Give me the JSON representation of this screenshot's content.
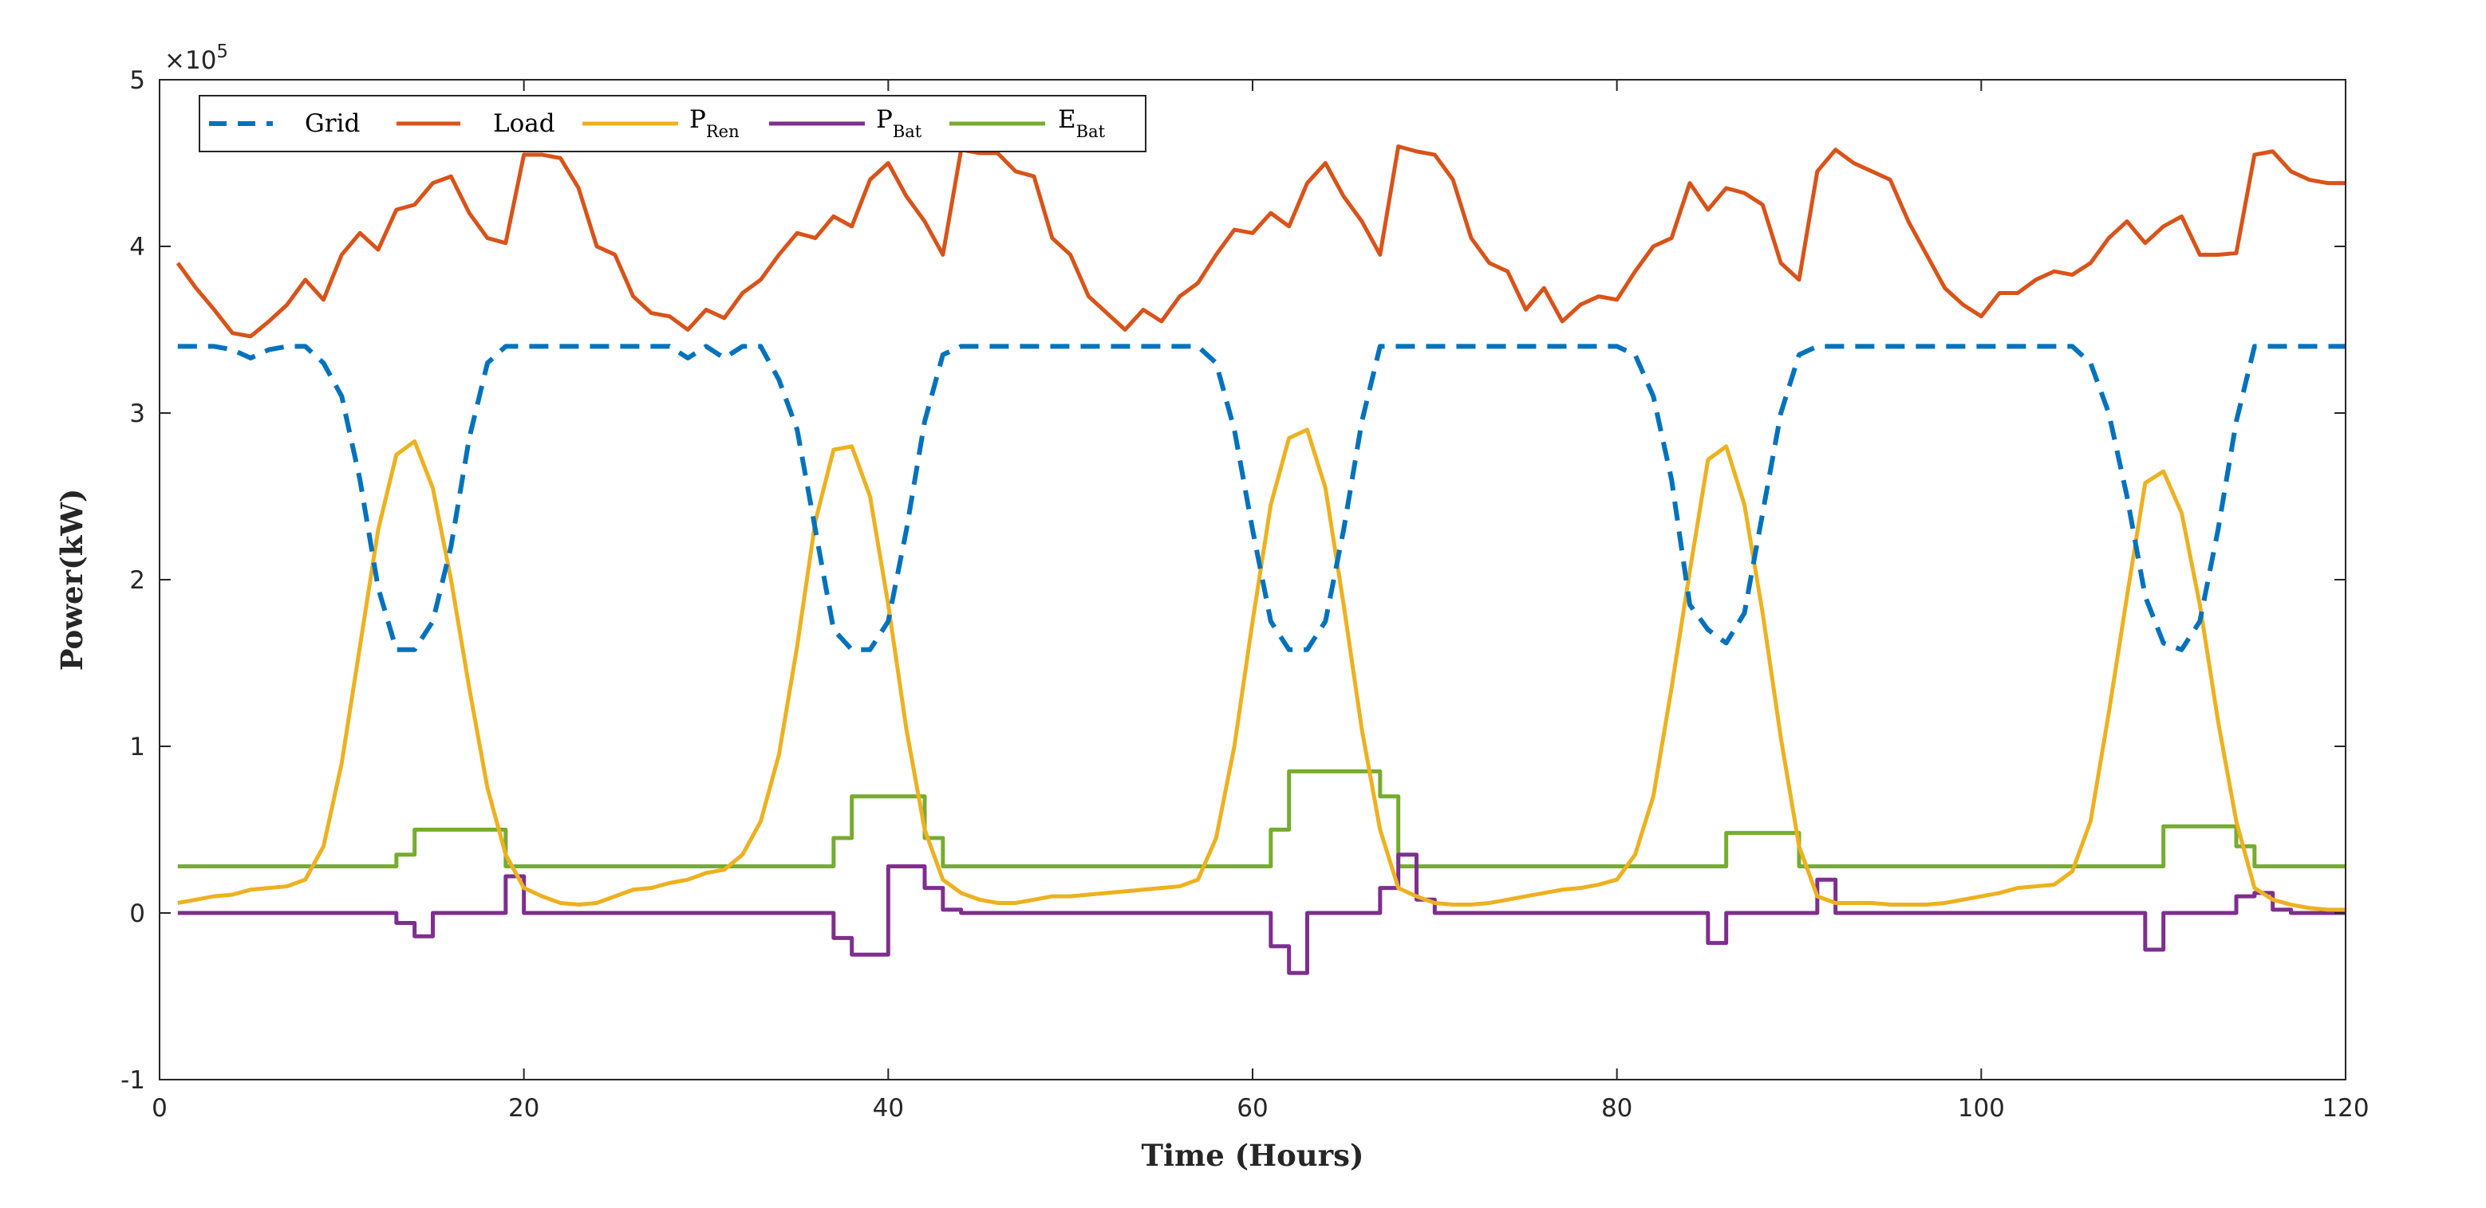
{
  "chart_data": {
    "type": "line",
    "title": "",
    "xlabel": "Time (Hours)",
    "ylabel": "Power(kW)",
    "xlim": [
      0,
      120
    ],
    "ylim": [
      -1,
      5
    ],
    "y_multiplier": "×10",
    "y_multiplier_exp": "5",
    "xticks": [
      0,
      20,
      40,
      60,
      80,
      100,
      120
    ],
    "yticks": [
      -1,
      0,
      1,
      2,
      3,
      4,
      5
    ],
    "grid": false,
    "legend_position": "top-left",
    "series": [
      {
        "name": "Grid",
        "label_main": "Grid",
        "label_sub": "",
        "color": "#0072BD",
        "style": "dashed",
        "x": [
          1,
          2,
          3,
          4,
          5,
          6,
          7,
          8,
          9,
          10,
          11,
          12,
          13,
          14,
          15,
          16,
          17,
          18,
          19,
          20,
          21,
          22,
          23,
          24,
          25,
          26,
          27,
          28,
          29,
          30,
          31,
          32,
          33,
          34,
          35,
          36,
          37,
          38,
          39,
          40,
          41,
          42,
          43,
          44,
          45,
          46,
          47,
          48,
          49,
          50,
          51,
          52,
          53,
          54,
          55,
          56,
          57,
          58,
          59,
          60,
          61,
          62,
          63,
          64,
          65,
          66,
          67,
          68,
          69,
          70,
          71,
          72,
          73,
          74,
          75,
          76,
          77,
          78,
          79,
          80,
          81,
          82,
          83,
          84,
          85,
          86,
          87,
          88,
          89,
          90,
          91,
          92,
          93,
          94,
          95,
          96,
          97,
          98,
          99,
          100,
          101,
          102,
          103,
          104,
          105,
          106,
          107,
          108,
          109,
          110,
          111,
          112,
          113,
          114,
          115,
          116,
          117,
          118,
          119,
          120
        ],
        "y": [
          3.4,
          3.4,
          3.4,
          3.38,
          3.33,
          3.38,
          3.4,
          3.4,
          3.3,
          3.1,
          2.6,
          1.95,
          1.58,
          1.58,
          1.75,
          2.2,
          2.85,
          3.3,
          3.4,
          3.4,
          3.4,
          3.4,
          3.4,
          3.4,
          3.4,
          3.4,
          3.4,
          3.4,
          3.33,
          3.4,
          3.33,
          3.4,
          3.4,
          3.2,
          2.9,
          2.3,
          1.7,
          1.58,
          1.58,
          1.75,
          2.3,
          2.95,
          3.35,
          3.4,
          3.4,
          3.4,
          3.4,
          3.4,
          3.4,
          3.4,
          3.4,
          3.4,
          3.4,
          3.4,
          3.4,
          3.4,
          3.4,
          3.3,
          2.9,
          2.3,
          1.75,
          1.58,
          1.58,
          1.75,
          2.3,
          2.95,
          3.4,
          3.4,
          3.4,
          3.4,
          3.4,
          3.4,
          3.4,
          3.4,
          3.4,
          3.4,
          3.4,
          3.4,
          3.4,
          3.4,
          3.35,
          3.1,
          2.6,
          1.85,
          1.7,
          1.62,
          1.8,
          2.4,
          3.0,
          3.35,
          3.4,
          3.4,
          3.4,
          3.4,
          3.4,
          3.4,
          3.4,
          3.4,
          3.4,
          3.4,
          3.4,
          3.4,
          3.4,
          3.4,
          3.4,
          3.3,
          3.0,
          2.5,
          1.9,
          1.62,
          1.58,
          1.75,
          2.3,
          2.95,
          3.4,
          3.4,
          3.4,
          3.4,
          3.4,
          3.4
        ]
      },
      {
        "name": "Load",
        "label_main": "Load",
        "label_sub": "",
        "color": "#D95319",
        "style": "solid",
        "x": [
          1,
          2,
          3,
          4,
          5,
          6,
          7,
          8,
          9,
          10,
          11,
          12,
          13,
          14,
          15,
          16,
          17,
          18,
          19,
          20,
          21,
          22,
          23,
          24,
          25,
          26,
          27,
          28,
          29,
          30,
          31,
          32,
          33,
          34,
          35,
          36,
          37,
          38,
          39,
          40,
          41,
          42,
          43,
          44,
          45,
          46,
          47,
          48,
          49,
          50,
          51,
          52,
          53,
          54,
          55,
          56,
          57,
          58,
          59,
          60,
          61,
          62,
          63,
          64,
          65,
          66,
          67,
          68,
          69,
          70,
          71,
          72,
          73,
          74,
          75,
          76,
          77,
          78,
          79,
          80,
          81,
          82,
          83,
          84,
          85,
          86,
          87,
          88,
          89,
          90,
          91,
          92,
          93,
          94,
          95,
          96,
          97,
          98,
          99,
          100,
          101,
          102,
          103,
          104,
          105,
          106,
          107,
          108,
          109,
          110,
          111,
          112,
          113,
          114,
          115,
          116,
          117,
          118,
          119,
          120
        ],
        "y": [
          3.9,
          3.75,
          3.62,
          3.48,
          3.46,
          3.55,
          3.65,
          3.8,
          3.68,
          3.95,
          4.08,
          3.98,
          4.22,
          4.25,
          4.38,
          4.42,
          4.2,
          4.05,
          4.02,
          4.55,
          4.55,
          4.53,
          4.35,
          4.0,
          3.95,
          3.7,
          3.6,
          3.58,
          3.5,
          3.62,
          3.57,
          3.72,
          3.8,
          3.95,
          4.08,
          4.05,
          4.18,
          4.12,
          4.4,
          4.5,
          4.3,
          4.15,
          3.95,
          4.58,
          4.56,
          4.56,
          4.45,
          4.42,
          4.05,
          3.95,
          3.7,
          3.6,
          3.5,
          3.62,
          3.55,
          3.7,
          3.78,
          3.95,
          4.1,
          4.08,
          4.2,
          4.12,
          4.38,
          4.5,
          4.3,
          4.15,
          3.95,
          4.6,
          4.57,
          4.55,
          4.4,
          4.05,
          3.9,
          3.85,
          3.62,
          3.75,
          3.55,
          3.65,
          3.7,
          3.68,
          3.85,
          4.0,
          4.05,
          4.38,
          4.22,
          4.35,
          4.32,
          4.25,
          3.9,
          3.8,
          4.45,
          4.58,
          4.5,
          4.45,
          4.4,
          4.15,
          3.95,
          3.75,
          3.65,
          3.58,
          3.72,
          3.72,
          3.8,
          3.85,
          3.83,
          3.9,
          4.05,
          4.15,
          4.02,
          4.12,
          4.18,
          3.95,
          3.95,
          3.96,
          4.55,
          4.57,
          4.45,
          4.4,
          4.38,
          4.38
        ]
      },
      {
        "name": "P_Ren",
        "label_main": "P",
        "label_sub": "Ren",
        "color": "#EDB120",
        "style": "solid",
        "x": [
          1,
          2,
          3,
          4,
          5,
          6,
          7,
          8,
          9,
          10,
          11,
          12,
          13,
          14,
          15,
          16,
          17,
          18,
          19,
          20,
          21,
          22,
          23,
          24,
          25,
          26,
          27,
          28,
          29,
          30,
          31,
          32,
          33,
          34,
          35,
          36,
          37,
          38,
          39,
          40,
          41,
          42,
          43,
          44,
          45,
          46,
          47,
          48,
          49,
          50,
          51,
          52,
          53,
          54,
          55,
          56,
          57,
          58,
          59,
          60,
          61,
          62,
          63,
          64,
          65,
          66,
          67,
          68,
          69,
          70,
          71,
          72,
          73,
          74,
          75,
          76,
          77,
          78,
          79,
          80,
          81,
          82,
          83,
          84,
          85,
          86,
          87,
          88,
          89,
          90,
          91,
          92,
          93,
          94,
          95,
          96,
          97,
          98,
          99,
          100,
          101,
          102,
          103,
          104,
          105,
          106,
          107,
          108,
          109,
          110,
          111,
          112,
          113,
          114,
          115,
          116,
          117,
          118,
          119,
          120
        ],
        "y": [
          0.06,
          0.08,
          0.1,
          0.11,
          0.14,
          0.15,
          0.16,
          0.2,
          0.4,
          0.9,
          1.6,
          2.3,
          2.75,
          2.83,
          2.55,
          2.0,
          1.35,
          0.75,
          0.35,
          0.15,
          0.1,
          0.06,
          0.05,
          0.06,
          0.1,
          0.14,
          0.15,
          0.18,
          0.2,
          0.24,
          0.26,
          0.35,
          0.55,
          0.95,
          1.6,
          2.35,
          2.78,
          2.8,
          2.5,
          1.85,
          1.1,
          0.5,
          0.2,
          0.12,
          0.08,
          0.06,
          0.06,
          0.08,
          0.1,
          0.1,
          0.11,
          0.12,
          0.13,
          0.14,
          0.15,
          0.16,
          0.2,
          0.45,
          1.0,
          1.75,
          2.45,
          2.85,
          2.9,
          2.55,
          1.85,
          1.1,
          0.5,
          0.15,
          0.1,
          0.06,
          0.05,
          0.05,
          0.06,
          0.08,
          0.1,
          0.12,
          0.14,
          0.15,
          0.17,
          0.2,
          0.35,
          0.7,
          1.35,
          2.05,
          2.72,
          2.8,
          2.45,
          1.8,
          1.05,
          0.4,
          0.1,
          0.06,
          0.06,
          0.06,
          0.05,
          0.05,
          0.05,
          0.06,
          0.08,
          0.1,
          0.12,
          0.15,
          0.16,
          0.17,
          0.25,
          0.55,
          1.2,
          1.9,
          2.58,
          2.65,
          2.4,
          1.85,
          1.15,
          0.55,
          0.15,
          0.08,
          0.05,
          0.03,
          0.02,
          0.02
        ]
      },
      {
        "name": "P_Bat",
        "label_main": "P",
        "label_sub": "Bat",
        "color": "#7E2F8E",
        "style": "step",
        "x": [
          1,
          13,
          14,
          15,
          17,
          19,
          20,
          37,
          38,
          40,
          42,
          43,
          44,
          61,
          62,
          63,
          67,
          68,
          69,
          70,
          85,
          86,
          87,
          90,
          91,
          92,
          93,
          109,
          110,
          111,
          114,
          115,
          116,
          117,
          118,
          120
        ],
        "y": [
          0,
          -0.06,
          -0.14,
          0,
          0,
          0.22,
          0,
          -0.15,
          -0.25,
          0.28,
          0.15,
          0.02,
          0,
          -0.2,
          -0.36,
          0,
          0.15,
          0.35,
          0.08,
          0,
          -0.18,
          0,
          0,
          0,
          0.2,
          0,
          0,
          -0.22,
          0,
          0,
          0.1,
          0.12,
          0.02,
          0,
          0,
          0
        ]
      },
      {
        "name": "E_Bat",
        "label_main": "E",
        "label_sub": "Bat",
        "color": "#77AC30",
        "style": "step",
        "x": [
          1,
          13,
          14,
          19,
          37,
          38,
          42,
          43,
          61,
          62,
          67,
          68,
          86,
          90,
          110,
          114,
          115,
          120
        ],
        "y": [
          0.28,
          0.35,
          0.5,
          0.28,
          0.45,
          0.7,
          0.45,
          0.28,
          0.5,
          0.85,
          0.7,
          0.28,
          0.48,
          0.28,
          0.52,
          0.4,
          0.28,
          0.28
        ]
      }
    ]
  }
}
